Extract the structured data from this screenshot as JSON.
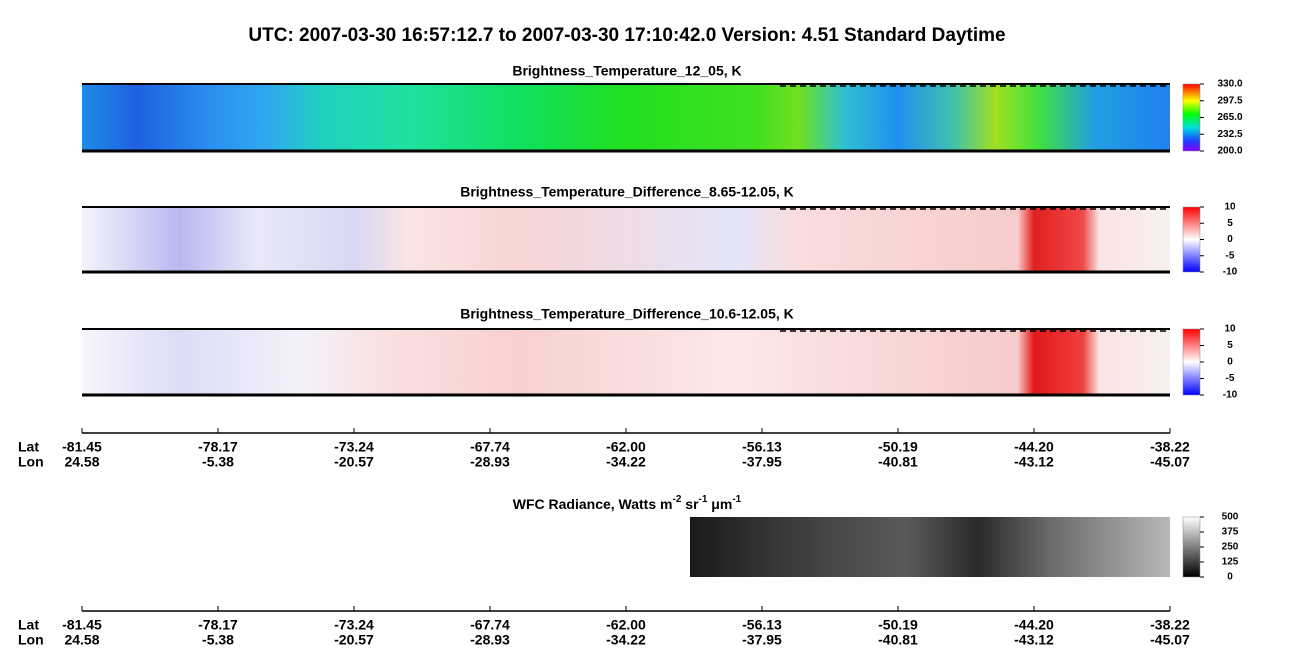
{
  "title": "UTC:  2007-03-30   16:57:12.7  to  2007-03-30   17:10:42.0    Version: 4.51  Standard Daytime",
  "panels": [
    {
      "title": "Brightness_Temperature_12_05, K",
      "colorbar": [
        "330.0",
        "297.5",
        "265.0",
        "232.5",
        "200.0"
      ]
    },
    {
      "title": "Brightness_Temperature_Difference_8.65-12.05, K",
      "colorbar": [
        "10",
        "5",
        "0",
        "-5",
        "-10"
      ]
    },
    {
      "title": "Brightness_Temperature_Difference_10.6-12.05, K",
      "colorbar": [
        "10",
        "5",
        "0",
        "-5",
        "-10"
      ]
    },
    {
      "title_parts": [
        "WFC Radiance, Watts m",
        "-2",
        " sr",
        "-1",
        " μm",
        "-1"
      ],
      "colorbar": [
        "500",
        "375",
        "250",
        "125",
        "0"
      ]
    }
  ],
  "axes": [
    {
      "lat_label": "Lat",
      "lon_label": "Lon",
      "lat": [
        "-81.45",
        "-78.17",
        "-73.24",
        "-67.74",
        "-62.00",
        "-56.13",
        "-50.19",
        "-44.20",
        "-38.22"
      ],
      "lon": [
        "24.58",
        "-5.38",
        "-20.57",
        "-28.93",
        "-34.22",
        "-37.95",
        "-40.81",
        "-43.12",
        "-45.07"
      ]
    },
    {
      "lat_label": "Lat",
      "lon_label": "Lon",
      "lat": [
        "-81.45",
        "-78.17",
        "-73.24",
        "-67.74",
        "-62.00",
        "-56.13",
        "-50.19",
        "-44.20",
        "-38.22"
      ],
      "lon": [
        "24.58",
        "-5.38",
        "-20.57",
        "-28.93",
        "-34.22",
        "-37.95",
        "-40.81",
        "-43.12",
        "-45.07"
      ]
    }
  ]
}
